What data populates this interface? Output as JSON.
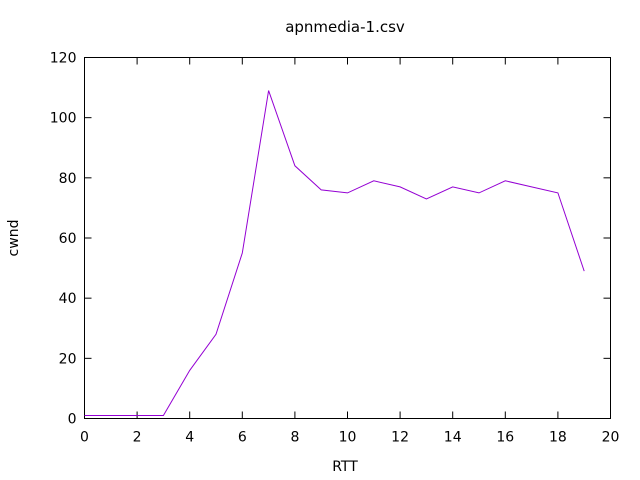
{
  "chart_data": {
    "type": "line",
    "title": "apnmedia-1.csv",
    "xlabel": "RTT",
    "ylabel": "cwnd",
    "xlim": [
      0,
      20
    ],
    "ylim": [
      0,
      120
    ],
    "xticks": [
      0,
      2,
      4,
      6,
      8,
      10,
      12,
      14,
      16,
      18,
      20
    ],
    "yticks": [
      0,
      20,
      40,
      60,
      80,
      100,
      120
    ],
    "grid": false,
    "legend": "none",
    "series": [
      {
        "color": "#9400d3",
        "x": [
          0,
          1,
          2,
          3,
          4,
          5,
          6,
          7,
          8,
          9,
          10,
          11,
          12,
          13,
          14,
          15,
          16,
          17,
          18,
          19
        ],
        "y": [
          1,
          1,
          1,
          1,
          16,
          28,
          55,
          109,
          84,
          76,
          75,
          79,
          77,
          73,
          77,
          75,
          79,
          77,
          75,
          49
        ]
      }
    ]
  }
}
